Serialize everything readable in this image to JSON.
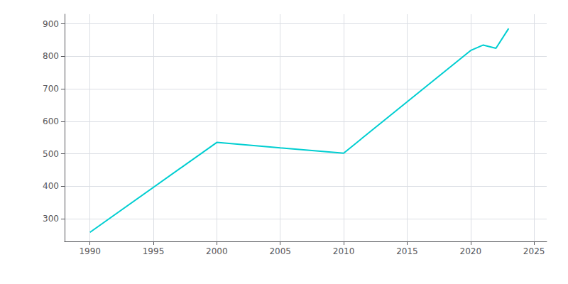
{
  "chart_data": {
    "type": "line",
    "x": [
      1990,
      2000,
      2005,
      2010,
      2020,
      2021,
      2022,
      2023
    ],
    "values": [
      258,
      535,
      518,
      502,
      818,
      835,
      825,
      886
    ],
    "color": "#00CED1",
    "xlim": [
      1988,
      2026
    ],
    "ylim": [
      230,
      930
    ],
    "xticks": [
      1990,
      1995,
      2000,
      2005,
      2010,
      2015,
      2020,
      2025
    ],
    "yticks": [
      300,
      400,
      500,
      600,
      700,
      800,
      900
    ],
    "grid": true
  }
}
